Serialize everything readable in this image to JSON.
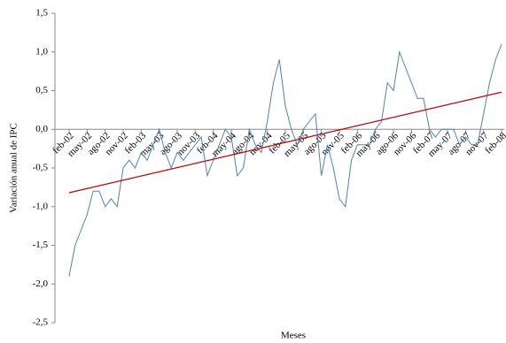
{
  "chart_data": {
    "type": "line",
    "xlabel": "Meses",
    "ylabel": "Variación anual de IPC",
    "categories": [
      "feb-02",
      null,
      null,
      "may-02",
      null,
      null,
      "ago-02",
      null,
      null,
      "nov-02",
      null,
      null,
      "feb-03",
      null,
      null,
      "may-03",
      null,
      null,
      "ago-03",
      null,
      null,
      "nov-03",
      null,
      null,
      "feb-04",
      null,
      null,
      "may-04",
      null,
      null,
      "ago-04",
      null,
      null,
      "nov-04",
      null,
      null,
      "feb-05",
      null,
      null,
      "may-05",
      null,
      null,
      "ago-05",
      null,
      null,
      "nov-05",
      null,
      null,
      "feb-06",
      null,
      null,
      "may-06",
      null,
      null,
      "ago-06",
      null,
      null,
      "nov-06",
      null,
      null,
      "feb-07",
      null,
      null,
      "may-07",
      null,
      null,
      "ago-07",
      null,
      null,
      "nov-07",
      null,
      null,
      "feb-08"
    ],
    "series": [
      {
        "color": "#4f81bd",
        "values": [
          -1.9,
          -1.5,
          -1.3,
          -1.1,
          -0.8,
          -0.8,
          -1.0,
          -0.9,
          -1.0,
          -0.5,
          -0.4,
          -0.5,
          -0.3,
          -0.4,
          -0.2,
          0.0,
          -0.3,
          -0.5,
          -0.3,
          -0.4,
          -0.3,
          -0.2,
          -0.1,
          -0.6,
          -0.4,
          -0.2,
          0.0,
          -0.1,
          -0.6,
          -0.5,
          0.0,
          -0.2,
          -0.3,
          0.1,
          0.6,
          0.9,
          0.3,
          0.0,
          -0.2,
          0.0,
          0.1,
          0.2,
          -0.6,
          -0.2,
          -0.5,
          -0.9,
          -1.0,
          -0.4,
          -0.2,
          -0.2,
          -0.2,
          0.0,
          0.1,
          0.6,
          0.5,
          1.0,
          0.8,
          0.6,
          0.4,
          0.4,
          0.0,
          -0.1,
          0.0,
          0.0,
          0.0,
          -0.2,
          -0.1,
          -0.2,
          -0.2,
          0.2,
          0.6,
          0.9,
          1.1
        ]
      }
    ],
    "trend": {
      "color": "#c00000",
      "values": [
        -0.82,
        0.48
      ]
    },
    "ylim": [
      -2.5,
      1.5
    ],
    "yticks": [
      {
        "value": -2.5,
        "label": "-2,5"
      },
      {
        "value": -2.0,
        "label": "-2,0"
      },
      {
        "value": -1.5,
        "label": "-1,5"
      },
      {
        "value": -1.0,
        "label": "-1,0"
      },
      {
        "value": -0.5,
        "label": "-0,5"
      },
      {
        "value": 0,
        "label": "0,0"
      },
      {
        "value": 0.5,
        "label": "0,5"
      },
      {
        "value": 1.0,
        "label": "1,0"
      },
      {
        "value": 1.5,
        "label": "1,5"
      }
    ]
  }
}
